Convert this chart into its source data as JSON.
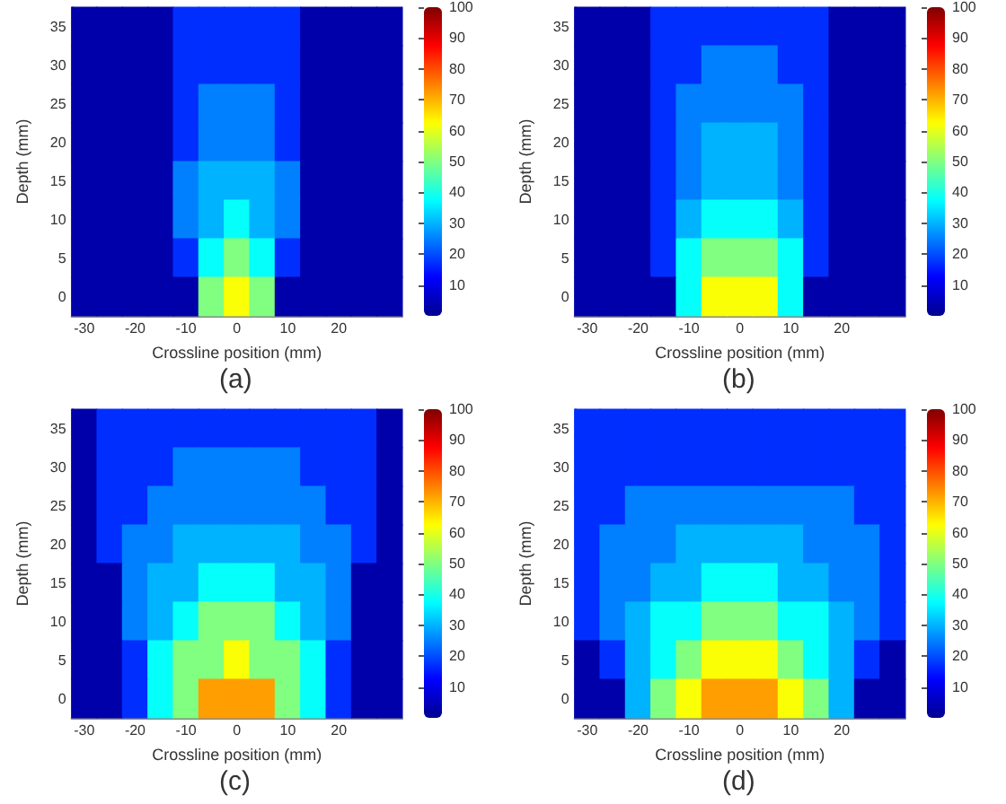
{
  "chart_data": [
    {
      "type": "heatmap",
      "xlabel": "Crossline position (mm)",
      "ylabel": "Depth (mm)",
      "annotations": [
        "(a)"
      ],
      "categories": [
        "-30",
        null,
        "-20",
        null,
        "-10",
        null,
        "0",
        null,
        "10",
        null,
        "20",
        null,
        null
      ],
      "y_categories": [
        "35",
        "30",
        "25",
        "20",
        "15",
        "10",
        "5",
        "0"
      ],
      "clim": [
        0,
        100
      ],
      "cticks": [
        10,
        20,
        30,
        40,
        50,
        60,
        70,
        80,
        90,
        100
      ],
      "cells": [
        [
          3,
          3,
          3,
          3,
          17,
          17,
          17,
          17,
          17,
          3,
          3,
          3,
          3
        ],
        [
          3,
          3,
          3,
          3,
          17,
          17,
          17,
          17,
          17,
          3,
          3,
          3,
          3
        ],
        [
          3,
          3,
          3,
          3,
          17,
          25,
          25,
          25,
          17,
          3,
          3,
          3,
          3
        ],
        [
          3,
          3,
          3,
          3,
          17,
          25,
          25,
          25,
          17,
          3,
          3,
          3,
          3
        ],
        [
          3,
          3,
          3,
          3,
          25,
          30,
          30,
          30,
          25,
          3,
          3,
          3,
          3
        ],
        [
          3,
          3,
          3,
          3,
          25,
          30,
          38,
          30,
          25,
          3,
          3,
          3,
          3
        ],
        [
          3,
          3,
          3,
          3,
          17,
          38,
          50,
          38,
          17,
          3,
          3,
          3,
          3
        ],
        [
          3,
          3,
          3,
          3,
          3,
          50,
          62,
          50,
          3,
          3,
          3,
          3,
          3
        ]
      ]
    },
    {
      "type": "heatmap",
      "xlabel": "Crossline position (mm)",
      "ylabel": "Depth (mm)",
      "annotations": [
        "(b)"
      ],
      "categories": [
        "-30",
        null,
        "-20",
        null,
        "-10",
        null,
        "0",
        null,
        "10",
        null,
        "20",
        null,
        null
      ],
      "y_categories": [
        "35",
        "30",
        "25",
        "20",
        "15",
        "10",
        "5",
        "0"
      ],
      "clim": [
        0,
        100
      ],
      "cticks": [
        10,
        20,
        30,
        40,
        50,
        60,
        70,
        80,
        90,
        100
      ],
      "cells": [
        [
          3,
          3,
          3,
          17,
          17,
          17,
          17,
          17,
          17,
          17,
          3,
          3,
          3
        ],
        [
          3,
          3,
          3,
          17,
          17,
          25,
          25,
          25,
          17,
          17,
          3,
          3,
          3
        ],
        [
          3,
          3,
          3,
          17,
          25,
          25,
          25,
          25,
          25,
          17,
          3,
          3,
          3
        ],
        [
          3,
          3,
          3,
          17,
          25,
          30,
          30,
          30,
          25,
          17,
          3,
          3,
          3
        ],
        [
          3,
          3,
          3,
          17,
          25,
          30,
          30,
          30,
          25,
          17,
          3,
          3,
          3
        ],
        [
          3,
          3,
          3,
          17,
          30,
          38,
          38,
          38,
          30,
          17,
          3,
          3,
          3
        ],
        [
          3,
          3,
          3,
          17,
          38,
          50,
          50,
          50,
          38,
          17,
          3,
          3,
          3
        ],
        [
          3,
          3,
          3,
          3,
          38,
          62,
          62,
          62,
          38,
          3,
          3,
          3,
          3
        ]
      ]
    },
    {
      "type": "heatmap",
      "xlabel": "Crossline position (mm)",
      "ylabel": "Depth (mm)",
      "annotations": [
        "(c)"
      ],
      "categories": [
        "-30",
        null,
        "-20",
        null,
        "-10",
        null,
        "0",
        null,
        "10",
        null,
        "20",
        null,
        null
      ],
      "y_categories": [
        "35",
        "30",
        "25",
        "20",
        "15",
        "10",
        "5",
        "0"
      ],
      "clim": [
        0,
        100
      ],
      "cticks": [
        10,
        20,
        30,
        40,
        50,
        60,
        70,
        80,
        90,
        100
      ],
      "cells": [
        [
          3,
          17,
          17,
          17,
          17,
          17,
          17,
          17,
          17,
          17,
          17,
          17,
          3
        ],
        [
          3,
          17,
          17,
          17,
          25,
          25,
          25,
          25,
          25,
          17,
          17,
          17,
          3
        ],
        [
          3,
          17,
          17,
          25,
          25,
          25,
          25,
          25,
          25,
          25,
          17,
          17,
          3
        ],
        [
          3,
          17,
          25,
          25,
          30,
          30,
          30,
          30,
          30,
          25,
          25,
          17,
          3
        ],
        [
          3,
          3,
          25,
          30,
          30,
          38,
          38,
          38,
          30,
          30,
          25,
          3,
          3
        ],
        [
          3,
          3,
          25,
          30,
          38,
          50,
          50,
          50,
          38,
          30,
          25,
          3,
          3
        ],
        [
          3,
          3,
          17,
          38,
          50,
          50,
          62,
          50,
          50,
          38,
          17,
          3,
          3
        ],
        [
          3,
          3,
          17,
          38,
          50,
          72,
          72,
          72,
          50,
          38,
          17,
          3,
          3
        ]
      ]
    },
    {
      "type": "heatmap",
      "xlabel": "Crossline position (mm)",
      "ylabel": "Depth (mm)",
      "annotations": [
        "(d)"
      ],
      "categories": [
        "-30",
        null,
        "-20",
        null,
        "-10",
        null,
        "0",
        null,
        "10",
        null,
        "20",
        null,
        null
      ],
      "y_categories": [
        "35",
        "30",
        "25",
        "20",
        "15",
        "10",
        "5",
        "0"
      ],
      "clim": [
        0,
        100
      ],
      "cticks": [
        10,
        20,
        30,
        40,
        50,
        60,
        70,
        80,
        90,
        100
      ],
      "cells": [
        [
          17,
          17,
          17,
          17,
          17,
          17,
          17,
          17,
          17,
          17,
          17,
          17,
          17
        ],
        [
          17,
          17,
          17,
          17,
          17,
          17,
          17,
          17,
          17,
          17,
          17,
          17,
          17
        ],
        [
          17,
          17,
          25,
          25,
          25,
          25,
          25,
          25,
          25,
          25,
          25,
          17,
          17
        ],
        [
          17,
          25,
          25,
          25,
          30,
          30,
          30,
          30,
          30,
          25,
          25,
          25,
          17
        ],
        [
          17,
          25,
          25,
          30,
          30,
          38,
          38,
          38,
          30,
          30,
          25,
          25,
          17
        ],
        [
          17,
          25,
          30,
          38,
          38,
          50,
          50,
          50,
          38,
          38,
          30,
          25,
          17
        ],
        [
          3,
          17,
          30,
          38,
          50,
          62,
          62,
          62,
          50,
          38,
          30,
          17,
          3
        ],
        [
          3,
          3,
          30,
          50,
          62,
          72,
          72,
          72,
          62,
          50,
          30,
          3,
          3
        ]
      ]
    }
  ]
}
